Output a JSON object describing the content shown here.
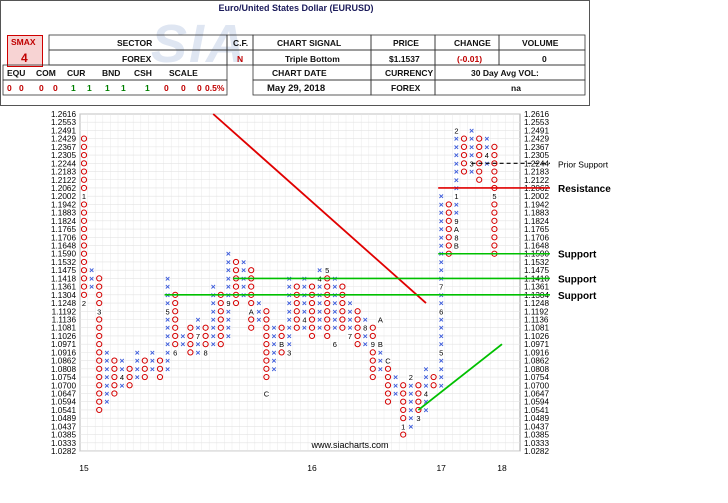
{
  "header": {
    "title": "Euro/United States Dollar (EURUSD)",
    "smax_label": "SMAX",
    "smax_value": "4",
    "sector_label": "SECTOR",
    "sector_value": "FOREX",
    "cf_label": "C.F.",
    "cf_value": "N",
    "chart_signal_label": "CHART SIGNAL",
    "chart_signal_value": "Triple Bottom",
    "price_label": "PRICE",
    "price_value": "$1.1537",
    "change_label": "CHANGE",
    "change_value": "(-0.01)",
    "volume_label": "VOLUME",
    "volume_value": "0",
    "attr_labels": [
      "EQU",
      "COM",
      "CUR",
      "BND",
      "CSH",
      "SCALE"
    ],
    "attr_values": [
      "0",
      "0",
      "0",
      "0",
      "1",
      "1",
      "1",
      "1",
      "1",
      "0",
      "0",
      "0",
      "0.5%"
    ],
    "chart_date_label": "CHART DATE",
    "chart_date_value": "May 29, 2018",
    "currency_label": "CURRENCY",
    "currency_value": "FOREX",
    "avg_vol_label": "30 Day Avg VOL:",
    "avg_vol_value": "na"
  },
  "colors": {
    "x_color": "#3b5bdb",
    "o_color": "#d40000",
    "resistance_line": "#e00000",
    "support_line": "#00c000",
    "trend_down": "#e00000",
    "trend_up": "#00c000",
    "grid": "#e3e3e3",
    "label_color": "#000000"
  },
  "watermark_text": "www.siacharts.com",
  "chart_data": {
    "type": "point-and-figure",
    "ylabels_left": [
      "1.2616",
      "1.2553",
      "1.2491",
      "1.2429",
      "1.2367",
      "1.2305",
      "1.2244",
      "1.2183",
      "1.2122",
      "1.2062",
      "1.2002",
      "1.1942",
      "1.1883",
      "1.1824",
      "1.1765",
      "1.1706",
      "1.1648",
      "1.1590",
      "1.1532",
      "1.1475",
      "1.1418",
      "1.1361",
      "1.1304",
      "1.1248",
      "1.1192",
      "1.1136",
      "1.1081",
      "1.1026",
      "1.0971",
      "1.0916",
      "1.0862",
      "1.0808",
      "1.0754",
      "1.0700",
      "1.0647",
      "1.0594",
      "1.0541",
      "1.0489",
      "1.0437",
      "1.0385",
      "1.0333",
      "1.0282"
    ],
    "ylabels_right": [
      "1.2616",
      "1.2553",
      "1.2491",
      "1.2429",
      "1.2367",
      "1.2305",
      "1.2244",
      "1.2183",
      "1.2122",
      "1.2062",
      "1.2002",
      "1.1942",
      "1.1883",
      "1.1824",
      "1.1765",
      "1.1706",
      "1.1648",
      "1.1590",
      "1.1532",
      "1.1475",
      "1.1418",
      "1.1361",
      "1.1304",
      "1.1248",
      "1.1192",
      "1.1136",
      "1.1081",
      "1.1026",
      "1.0971",
      "1.0916",
      "1.0862",
      "1.0808",
      "1.0754",
      "1.0700",
      "1.0647",
      "1.0594",
      "1.0541",
      "1.0489",
      "1.0437",
      "1.0385",
      "1.0333",
      "1.0282"
    ],
    "x_axis_labels": [
      {
        "col": 0,
        "label": "15"
      },
      {
        "col": 30,
        "label": "16"
      },
      {
        "col": 47,
        "label": "17"
      },
      {
        "col": 55,
        "label": "18"
      }
    ],
    "columns": [
      {
        "type": "O",
        "top": 1.2429,
        "bottom": 1.1304
      },
      {
        "type": "X",
        "top": 1.1475,
        "bottom": 1.1361
      },
      {
        "type": "O",
        "top": 1.1418,
        "bottom": 1.0541
      },
      {
        "type": "X",
        "top": 1.0916,
        "bottom": 1.0594
      },
      {
        "type": "O",
        "top": 1.0862,
        "bottom": 1.0647
      },
      {
        "type": "X",
        "top": 1.0862,
        "bottom": 1.07
      },
      {
        "type": "O",
        "top": 1.0808,
        "bottom": 1.07
      },
      {
        "type": "X",
        "top": 1.0916,
        "bottom": 1.0754
      },
      {
        "type": "O",
        "top": 1.0862,
        "bottom": 1.0754
      },
      {
        "type": "X",
        "top": 1.0916,
        "bottom": 1.0808
      },
      {
        "type": "O",
        "top": 1.0862,
        "bottom": 1.0754
      },
      {
        "type": "X",
        "top": 1.1418,
        "bottom": 1.0808
      },
      {
        "type": "O",
        "top": 1.1304,
        "bottom": 1.0916
      },
      {
        "type": "X",
        "top": 1.1026,
        "bottom": 1.0971
      },
      {
        "type": "O",
        "top": 1.1081,
        "bottom": 1.0916
      },
      {
        "type": "X",
        "top": 1.1136,
        "bottom": 1.0916
      },
      {
        "type": "O",
        "top": 1.1081,
        "bottom": 1.0916
      },
      {
        "type": "X",
        "top": 1.1361,
        "bottom": 1.0971
      },
      {
        "type": "O",
        "top": 1.1304,
        "bottom": 1.0971
      },
      {
        "type": "X",
        "top": 1.159,
        "bottom": 1.1026
      },
      {
        "type": "O",
        "top": 1.1532,
        "bottom": 1.1248
      },
      {
        "type": "X",
        "top": 1.1532,
        "bottom": 1.1304
      },
      {
        "type": "O",
        "top": 1.1475,
        "bottom": 1.1081
      },
      {
        "type": "X",
        "top": 1.1248,
        "bottom": 1.1136
      },
      {
        "type": "O",
        "top": 1.1192,
        "bottom": 1.0754
      },
      {
        "type": "X",
        "top": 1.1081,
        "bottom": 1.0808
      },
      {
        "type": "O",
        "top": 1.1081,
        "bottom": 1.0916
      },
      {
        "type": "X",
        "top": 1.1418,
        "bottom": 1.0971
      },
      {
        "type": "O",
        "top": 1.1361,
        "bottom": 1.1081
      },
      {
        "type": "X",
        "top": 1.1418,
        "bottom": 1.1081
      },
      {
        "type": "O",
        "top": 1.1361,
        "bottom": 1.1026
      },
      {
        "type": "X",
        "top": 1.1475,
        "bottom": 1.1081
      },
      {
        "type": "O",
        "top": 1.1418,
        "bottom": 1.1026
      },
      {
        "type": "X",
        "top": 1.1418,
        "bottom": 1.1081
      },
      {
        "type": "O",
        "top": 1.1361,
        "bottom": 1.1081
      },
      {
        "type": "X",
        "top": 1.1248,
        "bottom": 1.1081
      },
      {
        "type": "O",
        "top": 1.1192,
        "bottom": 1.0971
      },
      {
        "type": "X",
        "top": 1.1136,
        "bottom": 1.0971
      },
      {
        "type": "O",
        "top": 1.1081,
        "bottom": 1.0754
      },
      {
        "type": "X",
        "top": 1.0916,
        "bottom": 1.0808
      },
      {
        "type": "O",
        "top": 1.0862,
        "bottom": 1.0594
      },
      {
        "type": "X",
        "top": 1.0754,
        "bottom": 1.0647
      },
      {
        "type": "O",
        "top": 1.07,
        "bottom": 1.0385
      },
      {
        "type": "X",
        "top": 1.0754,
        "bottom": 1.0437
      },
      {
        "type": "O",
        "top": 1.07,
        "bottom": 1.0489
      },
      {
        "type": "X",
        "top": 1.0808,
        "bottom": 1.0541
      },
      {
        "type": "O",
        "top": 1.0754,
        "bottom": 1.07
      },
      {
        "type": "X",
        "top": 1.2002,
        "bottom": 1.07
      },
      {
        "type": "O",
        "top": 1.1942,
        "bottom": 1.159
      },
      {
        "type": "X",
        "top": 1.2491,
        "bottom": 1.1648
      },
      {
        "type": "O",
        "top": 1.2429,
        "bottom": 1.2183
      },
      {
        "type": "X",
        "top": 1.2491,
        "bottom": 1.2183
      },
      {
        "type": "O",
        "top": 1.2429,
        "bottom": 1.2122
      },
      {
        "type": "X",
        "top": 1.2429,
        "bottom": 1.2244
      },
      {
        "type": "O",
        "top": 1.2367,
        "bottom": 1.159
      }
    ],
    "cell_labels": [
      {
        "col": 0,
        "value": 1.2002,
        "label": "1"
      },
      {
        "col": 0,
        "value": 1.1248,
        "label": "2"
      },
      {
        "col": 2,
        "value": 1.1192,
        "label": "3"
      },
      {
        "col": 5,
        "value": 1.0754,
        "label": "4"
      },
      {
        "col": 11,
        "value": 1.1192,
        "label": "5"
      },
      {
        "col": 12,
        "value": 1.0916,
        "label": "6"
      },
      {
        "col": 15,
        "value": 1.1026,
        "label": "7"
      },
      {
        "col": 16,
        "value": 1.0916,
        "label": "8"
      },
      {
        "col": 19,
        "value": 1.1248,
        "label": "9"
      },
      {
        "col": 22,
        "value": 1.1192,
        "label": "A"
      },
      {
        "col": 26,
        "value": 1.0971,
        "label": "B"
      },
      {
        "col": 24,
        "value": 1.0647,
        "label": "C"
      },
      {
        "col": 27,
        "value": 1.0916,
        "label": "3"
      },
      {
        "col": 29,
        "value": 1.1136,
        "label": "4"
      },
      {
        "col": 31,
        "value": 1.1418,
        "label": "4"
      },
      {
        "col": 32,
        "value": 1.1475,
        "label": "5"
      },
      {
        "col": 33,
        "value": 1.0971,
        "label": "6"
      },
      {
        "col": 35,
        "value": 1.1026,
        "label": "7"
      },
      {
        "col": 37,
        "value": 1.1081,
        "label": "8"
      },
      {
        "col": 38,
        "value": 1.0971,
        "label": "9"
      },
      {
        "col": 39,
        "value": 1.1136,
        "label": "A"
      },
      {
        "col": 39,
        "value": 1.0971,
        "label": "B"
      },
      {
        "col": 40,
        "value": 1.0862,
        "label": "C"
      },
      {
        "col": 42,
        "value": 1.0437,
        "label": "1"
      },
      {
        "col": 43,
        "value": 1.0754,
        "label": "2"
      },
      {
        "col": 44,
        "value": 1.0489,
        "label": "3"
      },
      {
        "col": 45,
        "value": 1.0647,
        "label": "4"
      },
      {
        "col": 47,
        "value": 1.0916,
        "label": "5"
      },
      {
        "col": 47,
        "value": 1.1192,
        "label": "6"
      },
      {
        "col": 47,
        "value": 1.1361,
        "label": "7"
      },
      {
        "col": 49,
        "value": 1.1706,
        "label": "8"
      },
      {
        "col": 49,
        "value": 1.1765,
        "label": "A"
      },
      {
        "col": 49,
        "value": 1.1648,
        "label": "B"
      },
      {
        "col": 49,
        "value": 1.1824,
        "label": "9"
      },
      {
        "col": 49,
        "value": 1.2002,
        "label": "1"
      },
      {
        "col": 49,
        "value": 1.2491,
        "label": "2"
      },
      {
        "col": 51,
        "value": 1.2244,
        "label": "3"
      },
      {
        "col": 53,
        "value": 1.2305,
        "label": "4"
      },
      {
        "col": 54,
        "value": 1.2002,
        "label": "5"
      }
    ],
    "support_levels": [
      {
        "value": 1.159,
        "label": "Support"
      },
      {
        "value": 1.1418,
        "label": "Support"
      },
      {
        "value": 1.1304,
        "label": "Support"
      }
    ],
    "resistance_level": {
      "value": 1.2062,
      "label": "Resistance"
    },
    "prior_support": {
      "value": 1.2244,
      "label": "Prior Support"
    },
    "trend_down": {
      "from": 1.2616,
      "to": 1.1248
    },
    "trend_up": {
      "from": 1.0541,
      "to": 1.0971
    }
  }
}
